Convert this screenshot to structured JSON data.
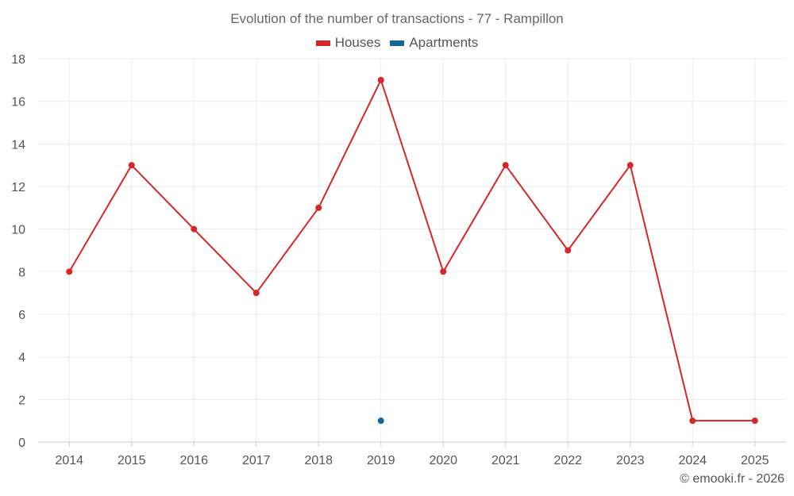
{
  "chart_data": {
    "type": "line",
    "title": "Evolution of the number of transactions - 77 - Rampillon",
    "xlabel": "",
    "ylabel": "",
    "categories": [
      "2014",
      "2015",
      "2016",
      "2017",
      "2018",
      "2019",
      "2020",
      "2021",
      "2022",
      "2023",
      "2024",
      "2025"
    ],
    "ylim": [
      0,
      18
    ],
    "yticks": [
      0,
      2,
      4,
      6,
      8,
      10,
      12,
      14,
      16,
      18
    ],
    "grid": true,
    "legend_position": "top-center",
    "series": [
      {
        "name": "Houses",
        "color": "#d62728",
        "values": [
          8,
          13,
          10,
          7,
          11,
          17,
          8,
          13,
          9,
          13,
          1,
          1
        ]
      },
      {
        "name": "Apartments",
        "color": "#1565a0",
        "values": [
          null,
          null,
          null,
          null,
          null,
          1,
          null,
          null,
          null,
          null,
          null,
          null
        ]
      }
    ]
  },
  "credit": "© emooki.fr - 2026"
}
